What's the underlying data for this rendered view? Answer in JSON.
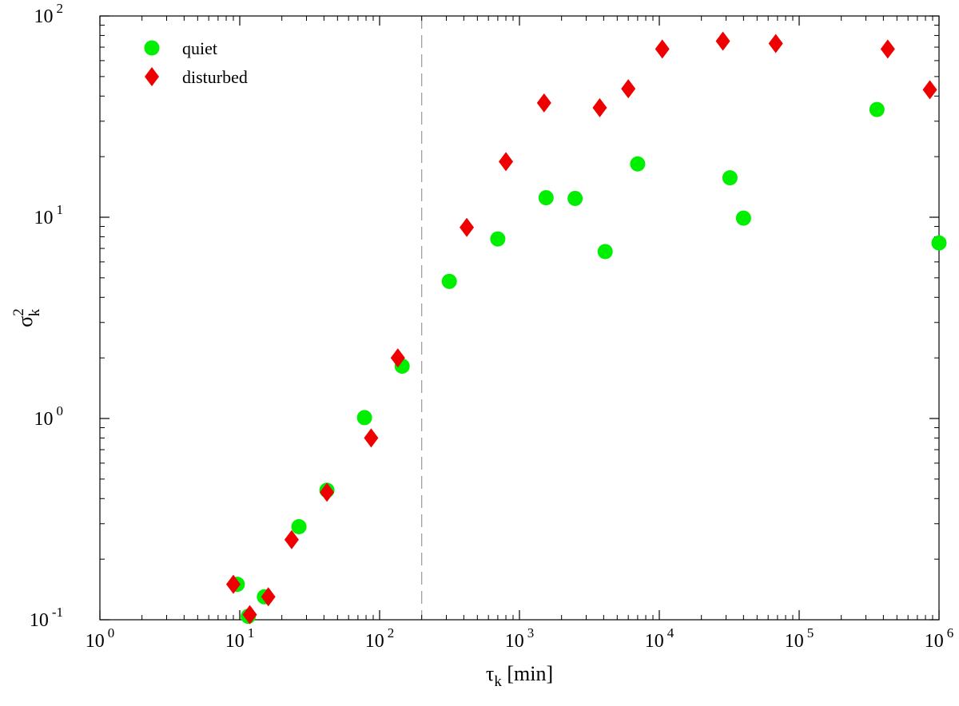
{
  "chart_data": {
    "type": "scatter",
    "x_scale": "log",
    "y_scale": "log",
    "xlim": [
      1,
      1000000
    ],
    "ylim": [
      0.1,
      100
    ],
    "x_ticks": [
      {
        "base": "10",
        "exp": "0",
        "value": 1
      },
      {
        "base": "10",
        "exp": "1",
        "value": 10
      },
      {
        "base": "10",
        "exp": "2",
        "value": 100
      },
      {
        "base": "10",
        "exp": "3",
        "value": 1000
      },
      {
        "base": "10",
        "exp": "4",
        "value": 10000
      },
      {
        "base": "10",
        "exp": "5",
        "value": 100000
      },
      {
        "base": "10",
        "exp": "6",
        "value": 1000000
      }
    ],
    "y_ticks": [
      {
        "base": "10",
        "exp": "-1",
        "value": 0.1
      },
      {
        "base": "10",
        "exp": "0",
        "value": 1
      },
      {
        "base": "10",
        "exp": "1",
        "value": 10
      },
      {
        "base": "10",
        "exp": "2",
        "value": 100
      }
    ],
    "xlabel": {
      "symbol": "τ",
      "sub": "k",
      "unit": "[min]"
    },
    "ylabel": {
      "symbol": "σ",
      "sub": "k",
      "sup": "2"
    },
    "grid": false,
    "legend": {
      "position": "top-left"
    },
    "reference_line": {
      "x": 200,
      "style": "dashed",
      "color": "#999999"
    },
    "series": [
      {
        "name": "quiet",
        "marker": "circle",
        "color": "#00ee00",
        "points": [
          [
            9.6,
            0.15
          ],
          [
            11.5,
            0.104
          ],
          [
            15,
            0.13
          ],
          [
            26.5,
            0.29
          ],
          [
            42,
            0.44
          ],
          [
            78,
            1.01
          ],
          [
            145,
            1.82
          ],
          [
            315,
            4.8
          ],
          [
            700,
            7.8
          ],
          [
            1550,
            12.5
          ],
          [
            2500,
            12.4
          ],
          [
            4100,
            6.75
          ],
          [
            7000,
            18.4
          ],
          [
            32000,
            15.7
          ],
          [
            40000,
            9.9
          ],
          [
            360000,
            34.3
          ],
          [
            1000000,
            7.45
          ]
        ]
      },
      {
        "name": "disturbed",
        "marker": "diamond",
        "color": "#ee0000",
        "points": [
          [
            9,
            0.15
          ],
          [
            11.8,
            0.106
          ],
          [
            16,
            0.13
          ],
          [
            23.5,
            0.25
          ],
          [
            42,
            0.43
          ],
          [
            87,
            0.8
          ],
          [
            135,
            2.0
          ],
          [
            420,
            8.9
          ],
          [
            800,
            18.9
          ],
          [
            1500,
            37
          ],
          [
            3750,
            35
          ],
          [
            6000,
            43.5
          ],
          [
            10500,
            68.5
          ],
          [
            28500,
            75
          ],
          [
            68000,
            73
          ],
          [
            430000,
            68.5
          ],
          [
            860000,
            43
          ]
        ]
      }
    ]
  }
}
